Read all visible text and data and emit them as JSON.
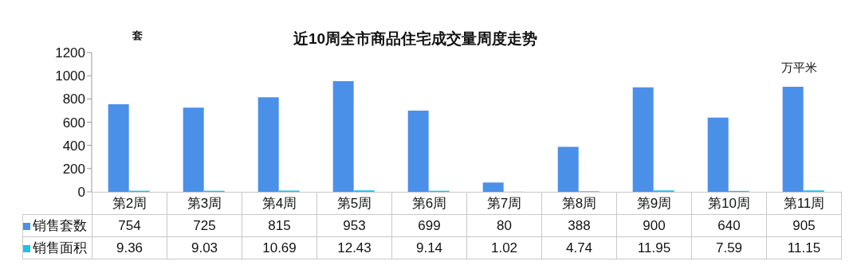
{
  "chart_data": {
    "type": "bar",
    "title": "近10周全市商品住宅成交量周度走势",
    "ylabel": "套",
    "y2label": "万平米",
    "categories": [
      "第2周",
      "第3周",
      "第4周",
      "第5周",
      "第6周",
      "第7周",
      "第8周",
      "第9周",
      "第10周",
      "第11周"
    ],
    "series": [
      {
        "name": "销售套数",
        "color": "#4a90e8",
        "values": [
          754,
          725,
          815,
          953,
          699,
          80,
          388,
          900,
          640,
          905
        ]
      },
      {
        "name": "销售面积",
        "color": "#1ec0ee",
        "values": [
          9.36,
          9.03,
          10.69,
          12.43,
          9.14,
          1.02,
          4.74,
          11.95,
          7.59,
          11.15
        ]
      }
    ],
    "ylim": [
      0,
      1200
    ],
    "yticks": [
      0,
      200,
      400,
      600,
      800,
      1000,
      1200
    ],
    "legend": "bottom",
    "data_labels": true
  }
}
